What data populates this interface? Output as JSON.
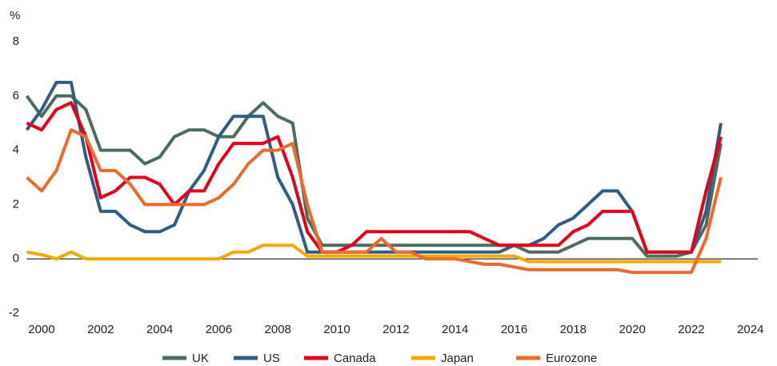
{
  "chart_data": {
    "type": "line",
    "y_label": "%",
    "x": [
      1999.5,
      2000,
      2000.5,
      2001,
      2001.5,
      2002,
      2002.5,
      2003,
      2003.5,
      2004,
      2004.5,
      2005,
      2005.5,
      2006,
      2006.5,
      2007,
      2007.5,
      2008,
      2008.5,
      2009,
      2009.5,
      2010,
      2010.5,
      2011,
      2011.5,
      2012,
      2012.5,
      2013,
      2013.5,
      2014,
      2014.5,
      2015,
      2015.5,
      2016,
      2016.5,
      2017,
      2017.5,
      2018,
      2018.5,
      2019,
      2019.5,
      2020,
      2020.5,
      2021,
      2021.5,
      2022,
      2022.5,
      2023
    ],
    "series": [
      {
        "name": "UK",
        "color": "#4d6e5c",
        "values": [
          6,
          5.25,
          6,
          6,
          5.5,
          4,
          4,
          4,
          3.5,
          3.75,
          4.5,
          4.75,
          4.75,
          4.5,
          4.5,
          5.25,
          5.75,
          5.25,
          5,
          1.5,
          0.5,
          0.5,
          0.5,
          0.5,
          0.5,
          0.5,
          0.5,
          0.5,
          0.5,
          0.5,
          0.5,
          0.5,
          0.5,
          0.5,
          0.25,
          0.25,
          0.25,
          0.5,
          0.75,
          0.75,
          0.75,
          0.75,
          0.1,
          0.1,
          0.1,
          0.25,
          1.25,
          4.25
        ]
      },
      {
        "name": "US",
        "color": "#2f5d86",
        "values": [
          4.75,
          5.5,
          6.5,
          6.5,
          3.75,
          1.75,
          1.75,
          1.25,
          1,
          1,
          1.25,
          2.5,
          3.25,
          4.5,
          5.25,
          5.25,
          5.25,
          3,
          2,
          0.25,
          0.25,
          0.25,
          0.25,
          0.25,
          0.25,
          0.25,
          0.25,
          0.25,
          0.25,
          0.25,
          0.25,
          0.25,
          0.25,
          0.5,
          0.5,
          0.75,
          1.25,
          1.5,
          2,
          2.5,
          2.5,
          1.75,
          0.25,
          0.25,
          0.25,
          0.25,
          1.75,
          5
        ]
      },
      {
        "name": "Canada",
        "color": "#e2001a",
        "values": [
          5,
          4.75,
          5.5,
          5.75,
          4.5,
          2.25,
          2.5,
          3,
          3,
          2.75,
          2,
          2.5,
          2.5,
          3.5,
          4.25,
          4.25,
          4.25,
          4.5,
          3,
          1,
          0.25,
          0.25,
          0.5,
          1,
          1,
          1,
          1,
          1,
          1,
          1,
          1,
          0.75,
          0.5,
          0.5,
          0.5,
          0.5,
          0.5,
          1,
          1.25,
          1.75,
          1.75,
          1.75,
          0.25,
          0.25,
          0.25,
          0.25,
          2.5,
          4.5
        ]
      },
      {
        "name": "Japan",
        "color": "#f5a800",
        "values": [
          0.25,
          0.15,
          0,
          0.25,
          0,
          0,
          0,
          0,
          0,
          0,
          0,
          0,
          0,
          0,
          0.25,
          0.25,
          0.5,
          0.5,
          0.5,
          0.1,
          0.1,
          0.1,
          0.1,
          0.1,
          0.1,
          0.1,
          0.1,
          0.1,
          0.1,
          0.1,
          0.1,
          0.1,
          0.1,
          0.1,
          -0.1,
          -0.1,
          -0.1,
          -0.1,
          -0.1,
          -0.1,
          -0.1,
          -0.1,
          -0.1,
          -0.1,
          -0.1,
          -0.1,
          -0.1,
          -0.1
        ]
      },
      {
        "name": "Eurozone",
        "color": "#ec6a2c",
        "values": [
          3,
          2.5,
          3.25,
          4.75,
          4.5,
          3.25,
          3.25,
          2.75,
          2,
          2,
          2,
          2,
          2,
          2.25,
          2.75,
          3.5,
          4,
          4,
          4.25,
          2,
          0.25,
          0.25,
          0.25,
          0.25,
          0.75,
          0.25,
          0.25,
          0,
          0,
          0,
          -0.1,
          -0.2,
          -0.2,
          -0.3,
          -0.4,
          -0.4,
          -0.4,
          -0.4,
          -0.4,
          -0.4,
          -0.4,
          -0.5,
          -0.5,
          -0.5,
          -0.5,
          -0.5,
          0.75,
          3
        ]
      }
    ],
    "xlim": [
      1999.5,
      2024.25
    ],
    "xticks": [
      2000,
      2002,
      2004,
      2006,
      2008,
      2010,
      2012,
      2014,
      2016,
      2018,
      2020,
      2022,
      2024
    ],
    "ylim": [
      -2,
      8
    ],
    "yticks": [
      -2,
      0,
      2,
      4,
      6,
      8
    ],
    "grid": false,
    "legend": "bottom"
  }
}
